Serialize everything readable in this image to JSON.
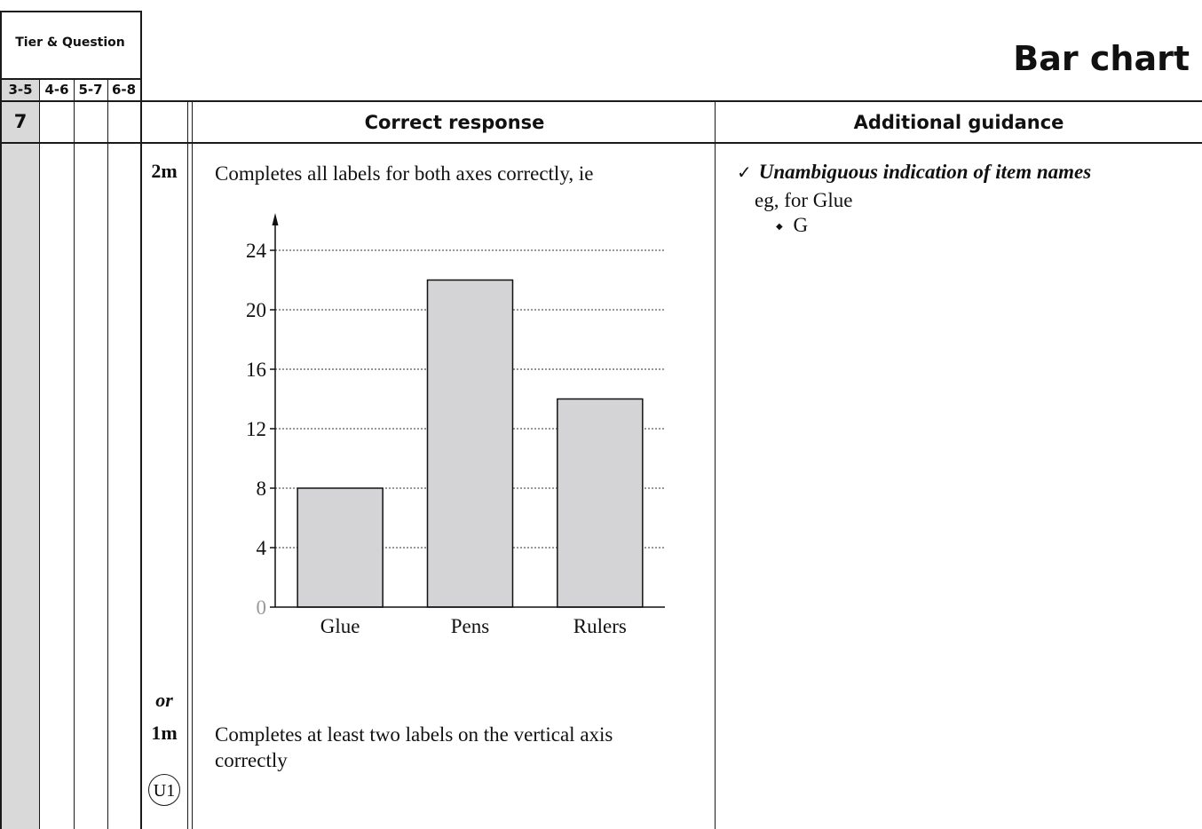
{
  "header": {
    "tier_question_label": "Tier & Question",
    "tiers": [
      "3-5",
      "4-6",
      "5-7",
      "6-8"
    ],
    "title": "Bar chart"
  },
  "columns": {
    "question_number": "7",
    "correct_response": "Correct response",
    "additional_guidance": "Additional guidance"
  },
  "marks": {
    "first": "2m",
    "or": "or",
    "second": "1m",
    "code": "U1"
  },
  "response": {
    "full_credit_text": "Completes all labels for both axes correctly, ie",
    "partial_credit_text": "Completes at least two labels on the vertical axis correctly"
  },
  "guidance": {
    "check_symbol": "✓",
    "heading": "Unambiguous indication of item names",
    "example_intro": "eg, for Glue",
    "bullet_symbol": "◆",
    "example_item": "G"
  },
  "chart_data": {
    "type": "bar",
    "categories": [
      "Glue",
      "Pens",
      "Rulers"
    ],
    "values": [
      8,
      22,
      14
    ],
    "yticks": [
      0,
      4,
      8,
      12,
      16,
      20,
      24
    ],
    "ylim": [
      0,
      24
    ],
    "grid": true,
    "colors": {
      "bar": "#d4d4d6",
      "grid": "#333333",
      "zero_label": "#999999"
    }
  }
}
